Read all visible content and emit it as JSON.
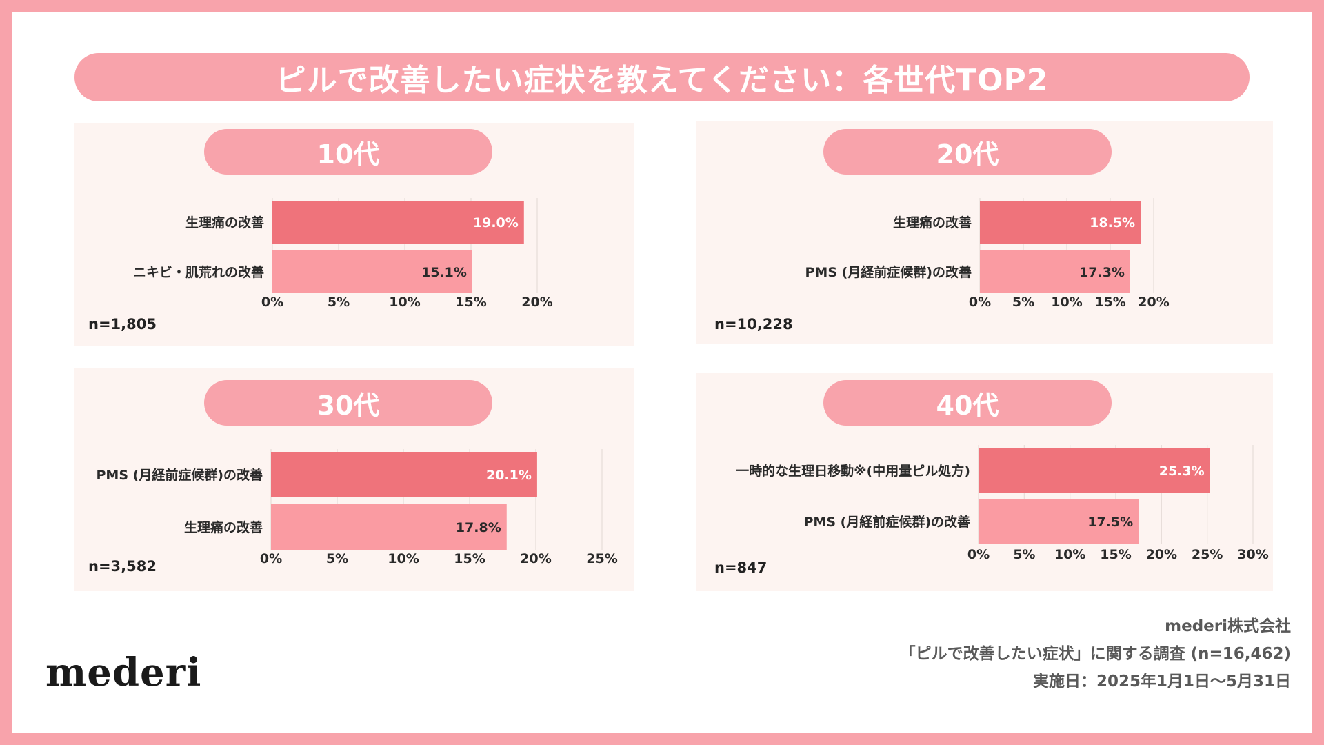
{
  "title": "ピルで改善したい症状を教えてください：各世代TOP2",
  "colors": {
    "frame": "#f8a3ab",
    "bar_top": "#ef737b",
    "bar_second": "#fa9ba2",
    "panel_bg": "#fdf4f1"
  },
  "chart_data": [
    {
      "type": "bar",
      "title": "10代",
      "categories": [
        "生理痛の改善",
        "ニキビ・肌荒れの改善"
      ],
      "values": [
        19.0,
        15.1
      ],
      "value_labels": [
        "19.0%",
        "15.1%"
      ],
      "xlim": [
        0,
        20
      ],
      "ticks": [
        "0%",
        "5%",
        "10%",
        "15%",
        "20%"
      ],
      "n": "n=1,805"
    },
    {
      "type": "bar",
      "title": "20代",
      "categories": [
        "生理痛の改善",
        "PMS (月経前症候群)の改善"
      ],
      "values": [
        18.5,
        17.3
      ],
      "value_labels": [
        "18.5%",
        "17.3%"
      ],
      "xlim": [
        0,
        20
      ],
      "ticks": [
        "0%",
        "5%",
        "10%",
        "15%",
        "20%"
      ],
      "n": "n=10,228"
    },
    {
      "type": "bar",
      "title": "30代",
      "categories": [
        "PMS (月経前症候群)の改善",
        "生理痛の改善"
      ],
      "values": [
        20.1,
        17.8
      ],
      "value_labels": [
        "20.1%",
        "17.8%"
      ],
      "xlim": [
        0,
        25
      ],
      "ticks": [
        "0%",
        "5%",
        "10%",
        "15%",
        "20%",
        "25%"
      ],
      "n": "n=3,582"
    },
    {
      "type": "bar",
      "title": "40代",
      "categories": [
        "一時的な生理日移動※(中用量ピル処方)",
        "PMS (月経前症候群)の改善"
      ],
      "values": [
        25.3,
        17.5
      ],
      "value_labels": [
        "25.3%",
        "17.5%"
      ],
      "xlim": [
        0,
        30
      ],
      "ticks": [
        "0%",
        "5%",
        "10%",
        "15%",
        "20%",
        "25%",
        "30%"
      ],
      "n": "n=847"
    }
  ],
  "footer": {
    "company": "mederi株式会社",
    "survey": "「ピルで改善したい症状」に関する調査 (n=16,462)",
    "date": "実施日：2025年1月1日〜5月31日"
  },
  "logo": "mederi"
}
